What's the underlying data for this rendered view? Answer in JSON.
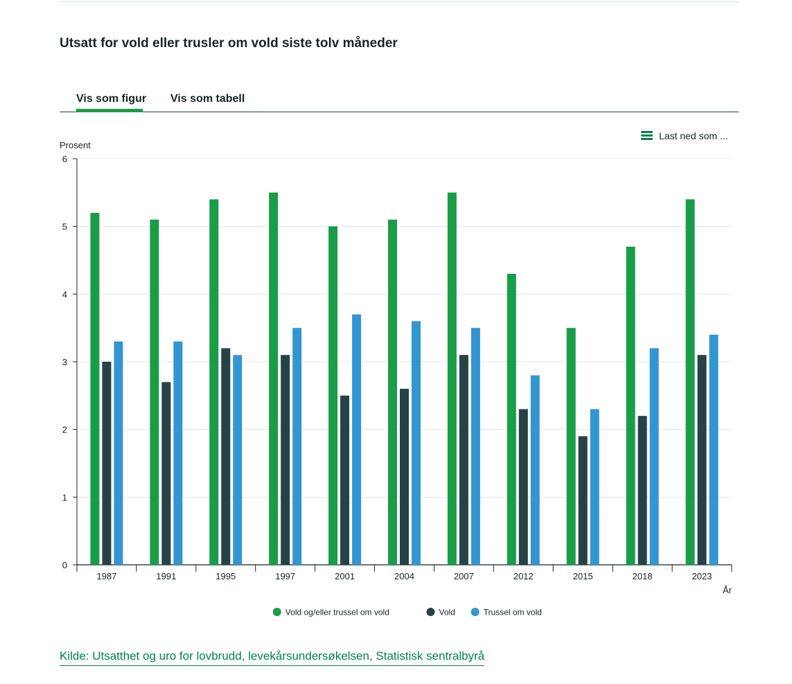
{
  "title": "Utsatt for vold eller trusler om vold siste tolv måneder",
  "tabs": {
    "figure": "Vis som figur",
    "table": "Vis som tabell"
  },
  "download_label": "Last ned som ...",
  "source_link": "Kilde: Utsatthet og uro for lovbrudd, levekårsundersøkelsen, Statistisk sentralbyrå",
  "colors": {
    "green": "#1a9d49",
    "dark": "#274247",
    "blue": "#3396d2",
    "link": "#00824d"
  },
  "icons": {
    "download": "menu-icon"
  },
  "chart_data": {
    "type": "bar",
    "ylabel": "Prosent",
    "xlabel": "År",
    "ylim": [
      0,
      6
    ],
    "yticks": [
      0,
      1,
      2,
      3,
      4,
      5,
      6
    ],
    "grid": true,
    "legend_position": "bottom",
    "categories": [
      "1987",
      "1991",
      "1995",
      "1997",
      "2001",
      "2004",
      "2007",
      "2012",
      "2015",
      "2018",
      "2023"
    ],
    "series": [
      {
        "name": "Vold og/eller trussel om vold",
        "color": "#1a9d49",
        "values": [
          5.2,
          5.1,
          5.4,
          5.5,
          5.0,
          5.1,
          5.5,
          4.3,
          3.5,
          4.7,
          5.4
        ]
      },
      {
        "name": "Vold",
        "color": "#274247",
        "values": [
          3.0,
          2.7,
          3.2,
          3.1,
          2.5,
          2.6,
          3.1,
          2.3,
          1.9,
          2.2,
          3.1
        ]
      },
      {
        "name": "Trussel om vold",
        "color": "#3396d2",
        "values": [
          3.3,
          3.3,
          3.1,
          3.5,
          3.7,
          3.6,
          3.5,
          2.8,
          2.3,
          3.2,
          3.4
        ]
      }
    ]
  }
}
